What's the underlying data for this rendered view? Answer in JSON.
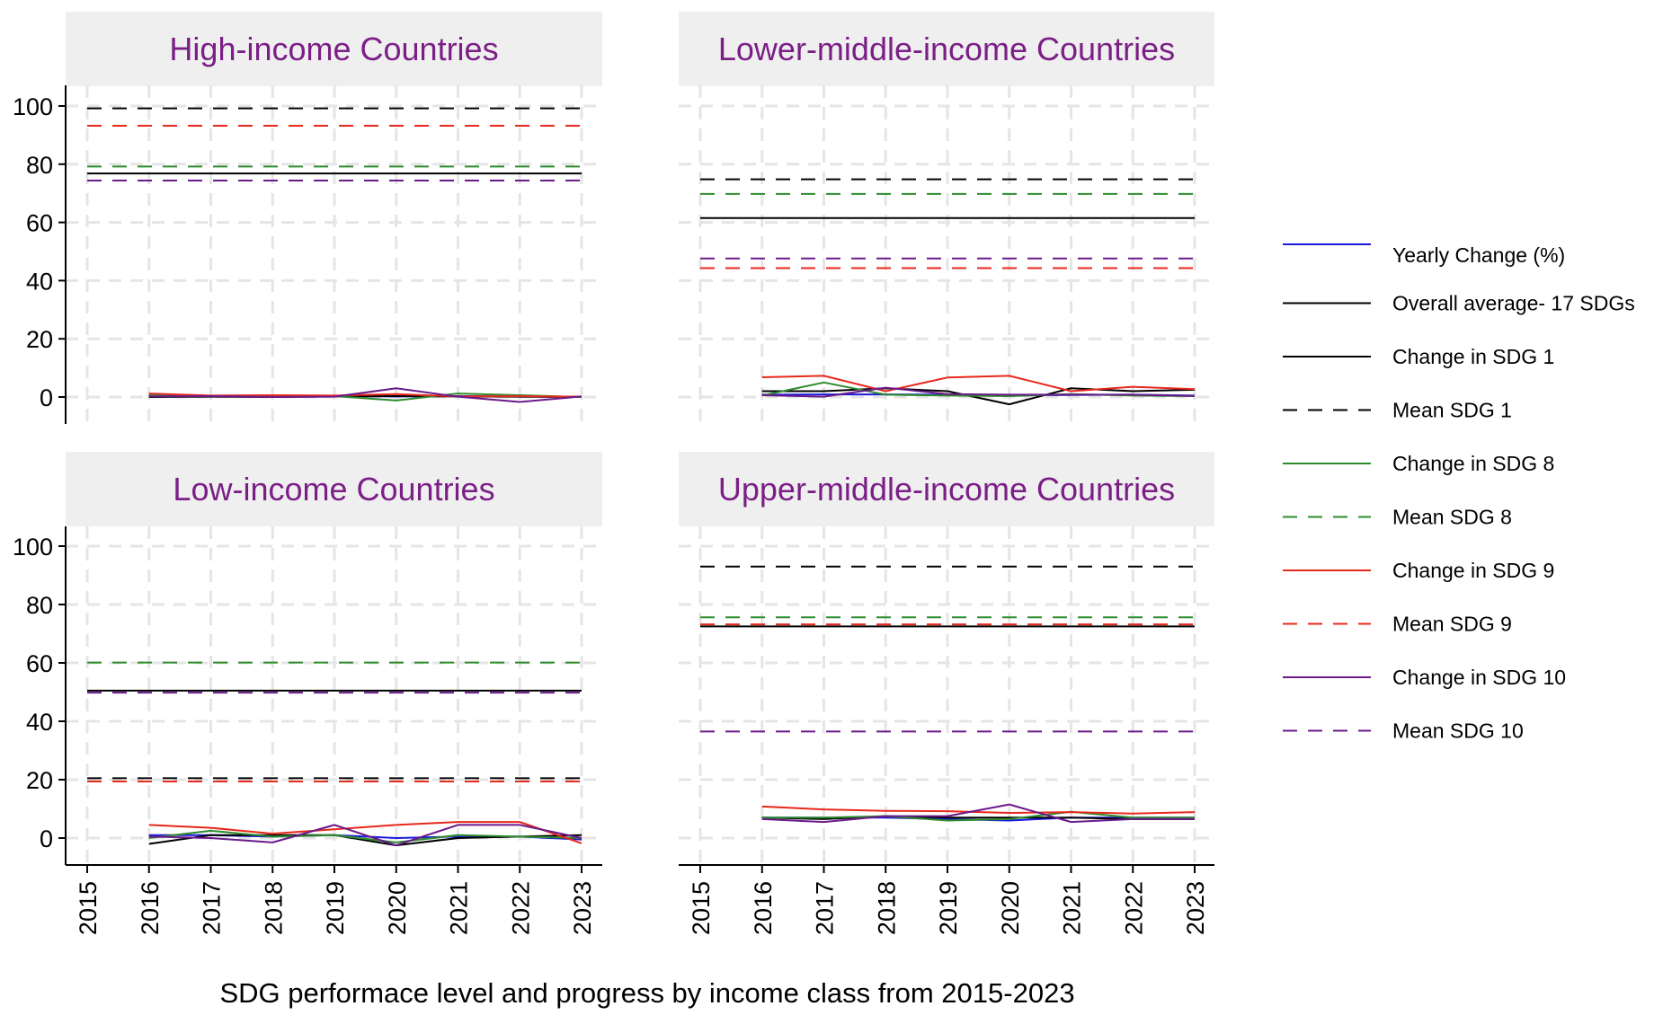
{
  "chart_data": {
    "type": "line",
    "caption": "SDG performace level and progress by income class from 2015-2023",
    "x_ticks": [
      "2015",
      "2016",
      "2017",
      "2018",
      "2019",
      "2020",
      "2021",
      "2022",
      "2023"
    ],
    "y_ticks": [
      "0",
      "20",
      "40",
      "60",
      "80",
      "100"
    ],
    "ylim": [
      -10,
      106
    ],
    "xlim": [
      2014.7,
      2023.3
    ],
    "grid": true,
    "legend_position": "right",
    "colors": {
      "Yearly Change (%)": "#1a1adc",
      "Overall average- 17 SDGs": "#000000",
      "SDG 1": "#000000",
      "SDG 8": "#2e8b2e",
      "SDG 9": "#e8281c",
      "SDG 10": "#6a1a8a",
      "strip_bg": "#efefef",
      "strip_text": "#7B1F86",
      "grid": "#e5e5e5"
    },
    "legend": [
      {
        "label": "Yearly Change (%)",
        "color_key": "Yearly Change (%)",
        "dash": "solid"
      },
      {
        "label": "Overall average- 17 SDGs",
        "color_key": "Overall average- 17 SDGs",
        "dash": "solid"
      },
      {
        "label": "Change in SDG 1",
        "color_key": "SDG 1",
        "dash": "solid"
      },
      {
        "label": "Mean SDG 1",
        "color_key": "SDG 1",
        "dash": "dashed"
      },
      {
        "label": "Change in SDG 8",
        "color_key": "SDG 8",
        "dash": "solid"
      },
      {
        "label": "Mean SDG 8",
        "color_key": "SDG 8",
        "dash": "dashed"
      },
      {
        "label": "Change in SDG 9",
        "color_key": "SDG 9",
        "dash": "solid"
      },
      {
        "label": "Mean SDG 9",
        "color_key": "SDG 9",
        "dash": "dashed"
      },
      {
        "label": "Change in SDG 10",
        "color_key": "SDG 10",
        "dash": "solid"
      },
      {
        "label": "Mean SDG 10",
        "color_key": "SDG 10",
        "dash": "dashed"
      }
    ],
    "panels": [
      {
        "title": "High-income Countries",
        "position": "top-left",
        "x": [
          2016,
          2017,
          2018,
          2019,
          2020,
          2021,
          2022,
          2023
        ],
        "means": {
          "Overall average- 17 SDGs": 76.8,
          "SDG 1": 99.2,
          "SDG 8": 79.2,
          "SDG 9": 93.2,
          "SDG 10": 74.4
        },
        "series": [
          {
            "name": "Yearly Change (%)",
            "values": [
              0.4,
              0.3,
              0.2,
              0.3,
              0.2,
              0.3,
              0.2,
              0.1
            ]
          },
          {
            "name": "Change in SDG 1",
            "values": [
              0.0,
              0.1,
              0.0,
              0.2,
              0.3,
              0.2,
              0.1,
              0.0
            ]
          },
          {
            "name": "Change in SDG 8",
            "values": [
              0.6,
              0.4,
              0.2,
              0.3,
              -1.2,
              1.2,
              0.6,
              0.0
            ]
          },
          {
            "name": "Change in SDG 9",
            "values": [
              1.2,
              0.5,
              0.6,
              0.5,
              1.0,
              0.2,
              0.3,
              0.1
            ]
          },
          {
            "name": "Change in SDG 10",
            "values": [
              0.2,
              0.3,
              0.0,
              0.1,
              3.0,
              0.1,
              -1.7,
              0.2
            ]
          }
        ]
      },
      {
        "title": "Lower-middle-income Countries",
        "position": "top-right",
        "x": [
          2016,
          2017,
          2018,
          2019,
          2020,
          2021,
          2022,
          2023
        ],
        "means": {
          "Overall average- 17 SDGs": 61.5,
          "SDG 1": 74.8,
          "SDG 8": 69.8,
          "SDG 9": 44.3,
          "SDG 10": 47.6
        },
        "series": [
          {
            "name": "Yearly Change (%)",
            "values": [
              0.8,
              0.9,
              0.9,
              0.8,
              0.6,
              0.7,
              0.8,
              0.5
            ]
          },
          {
            "name": "Change in SDG 1",
            "values": [
              2.0,
              2.0,
              3.0,
              2.0,
              -2.5,
              3.0,
              2.0,
              2.5
            ]
          },
          {
            "name": "Change in SDG 8",
            "values": [
              0.5,
              5.0,
              0.8,
              0.5,
              0.3,
              1.0,
              0.5,
              0.3
            ]
          },
          {
            "name": "Change in SDG 9",
            "values": [
              6.8,
              7.3,
              2.0,
              6.7,
              7.3,
              2.0,
              3.5,
              2.7
            ]
          },
          {
            "name": "Change in SDG 10",
            "values": [
              0.6,
              0.1,
              3.2,
              1.0,
              0.8,
              0.8,
              0.8,
              0.4
            ]
          }
        ]
      },
      {
        "title": "Low-income Countries",
        "position": "bottom-left",
        "x": [
          2016,
          2017,
          2018,
          2019,
          2020,
          2021,
          2022,
          2023
        ],
        "means": {
          "Overall average- 17 SDGs": 50.5,
          "SDG 1": 20.5,
          "SDG 8": 60.1,
          "SDG 9": 19.4,
          "SDG 10": 49.8
        },
        "series": [
          {
            "name": "Yearly Change (%)",
            "values": [
              1.0,
              1.0,
              0.5,
              1.0,
              0.0,
              0.5,
              0.5,
              -0.5
            ]
          },
          {
            "name": "Change in SDG 1",
            "values": [
              -2.0,
              1.0,
              1.0,
              1.0,
              -2.5,
              0.0,
              0.5,
              1.0
            ]
          },
          {
            "name": "Change in SDG 8",
            "values": [
              0.0,
              2.5,
              0.5,
              1.0,
              -1.5,
              1.0,
              0.5,
              0.0
            ]
          },
          {
            "name": "Change in SDG 9",
            "values": [
              4.5,
              3.5,
              1.5,
              3.0,
              4.5,
              5.5,
              5.5,
              -1.8
            ]
          },
          {
            "name": "Change in SDG 10",
            "values": [
              0.5,
              0.0,
              -1.5,
              4.5,
              -2.5,
              4.5,
              4.5,
              0.0
            ]
          }
        ]
      },
      {
        "title": "Upper-middle-income Countries",
        "position": "bottom-right",
        "x": [
          2016,
          2017,
          2018,
          2019,
          2020,
          2021,
          2022,
          2023
        ],
        "means": {
          "Overall average- 17 SDGs": 72.5,
          "SDG 1": 93.0,
          "SDG 8": 75.6,
          "SDG 9": 73.2,
          "SDG 10": 36.5
        },
        "series": [
          {
            "name": "Yearly Change (%)",
            "values": [
              7.0,
              7.0,
              7.0,
              6.5,
              6.0,
              7.0,
              7.0,
              7.0
            ]
          },
          {
            "name": "Change in SDG 1",
            "values": [
              7.0,
              6.5,
              7.5,
              7.0,
              7.0,
              7.0,
              6.5,
              6.5
            ]
          },
          {
            "name": "Change in SDG 8",
            "values": [
              7.0,
              7.0,
              7.5,
              6.0,
              6.5,
              9.0,
              7.0,
              7.0
            ]
          },
          {
            "name": "Change in SDG 9",
            "values": [
              10.8,
              9.8,
              9.3,
              9.2,
              8.6,
              8.9,
              8.4,
              8.9
            ]
          },
          {
            "name": "Change in SDG 10",
            "values": [
              6.5,
              5.5,
              7.5,
              7.5,
              11.5,
              5.5,
              6.5,
              6.5
            ]
          }
        ]
      }
    ]
  }
}
